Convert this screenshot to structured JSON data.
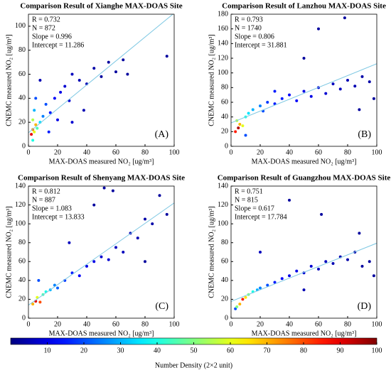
{
  "chart_data": [
    {
      "type": "scatter",
      "title": "Comparison Result of Xianghe MAX-DOAS Site",
      "x_label": "MAX-DOAS measured NO₂ [ug/m³]",
      "y_label": "CNEMC measured NO₂ [ug/m³]",
      "annotations": [
        "R = 0.732",
        "N = 872",
        "Slope = 0.996",
        "Intercept = 11.286"
      ],
      "panel_label": "(A)",
      "fit": {
        "slope": 0.996,
        "intercept": 11.286,
        "color": "#7ec8e3"
      },
      "xlim": [
        0,
        100
      ],
      "xticks": [
        0,
        20,
        40,
        60,
        80,
        100
      ],
      "ylim": [
        0,
        110
      ],
      "yticks": [
        0,
        20,
        40,
        60,
        80,
        100
      ],
      "x": [
        2,
        3,
        4,
        5,
        3,
        6,
        8,
        4,
        10,
        12,
        15,
        18,
        20,
        22,
        25,
        28,
        30,
        35,
        40,
        45,
        50,
        55,
        60,
        65,
        68,
        95,
        8,
        14,
        5,
        30,
        38,
        3
      ],
      "y": [
        10,
        14,
        12,
        18,
        22,
        15,
        20,
        30,
        25,
        35,
        28,
        40,
        22,
        45,
        50,
        38,
        60,
        55,
        52,
        65,
        58,
        70,
        62,
        72,
        60,
        75,
        55,
        12,
        40,
        20,
        30,
        5
      ],
      "density": [
        90,
        75,
        60,
        70,
        55,
        45,
        35,
        30,
        25,
        20,
        15,
        12,
        10,
        10,
        8,
        8,
        6,
        5,
        5,
        4,
        3,
        3,
        3,
        3,
        3,
        3,
        5,
        15,
        20,
        8,
        5,
        40
      ]
    },
    {
      "type": "scatter",
      "title": "Comparison Result of Lanzhou MAX-DOAS Site",
      "x_label": "MAX-DOAS measured NO₂ [ug/m³]",
      "y_label": "CNEMC measured NO₂ [ug/m³]",
      "annotations": [
        "R = 0.793",
        "N = 1740",
        "Slope = 0.806",
        "Intercept = 31.881"
      ],
      "panel_label": "(B)",
      "fit": {
        "slope": 0.806,
        "intercept": 31.881,
        "color": "#7ec8e3"
      },
      "xlim": [
        0,
        100
      ],
      "xticks": [
        0,
        20,
        40,
        60,
        80,
        100
      ],
      "ylim": [
        0,
        180
      ],
      "yticks": [
        0,
        20,
        40,
        60,
        80,
        100,
        120,
        140,
        160,
        180
      ],
      "x": [
        3,
        5,
        6,
        8,
        4,
        10,
        12,
        15,
        20,
        22,
        25,
        30,
        35,
        40,
        45,
        50,
        55,
        60,
        65,
        70,
        75,
        80,
        85,
        90,
        95,
        98,
        60,
        30,
        50,
        78,
        88,
        10
      ],
      "y": [
        20,
        25,
        30,
        28,
        35,
        40,
        45,
        50,
        55,
        48,
        60,
        58,
        65,
        70,
        62,
        75,
        68,
        80,
        72,
        85,
        78,
        90,
        82,
        95,
        88,
        65,
        160,
        75,
        120,
        175,
        50,
        15
      ],
      "density": [
        85,
        95,
        70,
        60,
        55,
        40,
        35,
        30,
        25,
        20,
        18,
        15,
        15,
        12,
        12,
        10,
        10,
        8,
        8,
        6,
        6,
        5,
        5,
        4,
        4,
        3,
        3,
        15,
        3,
        3,
        3,
        20
      ]
    },
    {
      "type": "scatter",
      "title": "Comparison Result of Shenyang MAX-DOAS Site",
      "x_label": "MAX-DOAS measured NO₂ [ug/m³]",
      "y_label": "CNEMC measured NO₂ [ug/m³]",
      "annotations": [
        "R = 0.812",
        "N = 887",
        "Slope = 1.083",
        "Intercept = 13.833"
      ],
      "panel_label": "(C)",
      "fit": {
        "slope": 1.083,
        "intercept": 13.833,
        "color": "#7ec8e3"
      },
      "xlim": [
        0,
        100
      ],
      "xticks": [
        0,
        20,
        40,
        60,
        80,
        100
      ],
      "ylim": [
        0,
        140
      ],
      "yticks": [
        0,
        20,
        40,
        60,
        80,
        100,
        120,
        140
      ],
      "x": [
        3,
        5,
        6,
        8,
        10,
        12,
        15,
        18,
        20,
        25,
        30,
        35,
        40,
        45,
        50,
        55,
        60,
        65,
        70,
        75,
        80,
        85,
        90,
        95,
        45,
        52,
        28,
        7,
        58,
        80
      ],
      "y": [
        15,
        18,
        22,
        17,
        25,
        28,
        30,
        35,
        32,
        40,
        48,
        45,
        55,
        60,
        65,
        62,
        75,
        70,
        90,
        85,
        105,
        100,
        130,
        110,
        120,
        138,
        80,
        40,
        135,
        60
      ],
      "density": [
        70,
        90,
        60,
        80,
        45,
        40,
        30,
        25,
        22,
        18,
        15,
        12,
        10,
        10,
        8,
        8,
        6,
        6,
        5,
        5,
        4,
        4,
        3,
        3,
        3,
        3,
        6,
        20,
        3,
        3
      ]
    },
    {
      "type": "scatter",
      "title": "Comparison Result of Guangzhou MAX-DOAS Site",
      "x_label": "MAX-DOAS measured NO₂ [ug/m³]",
      "y_label": "CNEMC measured NO₂ [ug/m³]",
      "annotations": [
        "R = 0.751",
        "N = 815",
        "Slope = 0.617",
        "Intercept = 17.784"
      ],
      "panel_label": "(D)",
      "fit": {
        "slope": 0.617,
        "intercept": 17.784,
        "color": "#7ec8e3"
      },
      "xlim": [
        0,
        100
      ],
      "xticks": [
        0,
        20,
        40,
        60,
        80,
        100
      ],
      "ylim": [
        0,
        140
      ],
      "yticks": [
        0,
        20,
        40,
        60,
        80,
        100,
        120,
        140
      ],
      "x": [
        4,
        6,
        8,
        10,
        12,
        15,
        18,
        20,
        25,
        30,
        35,
        40,
        45,
        50,
        55,
        60,
        65,
        70,
        75,
        80,
        85,
        90,
        95,
        98,
        40,
        62,
        88,
        20,
        3,
        50
      ],
      "y": [
        12,
        15,
        20,
        22,
        25,
        28,
        30,
        32,
        35,
        38,
        42,
        45,
        50,
        48,
        55,
        52,
        60,
        58,
        65,
        62,
        70,
        55,
        60,
        45,
        125,
        110,
        90,
        70,
        10,
        30
      ],
      "density": [
        50,
        70,
        85,
        65,
        50,
        40,
        30,
        25,
        20,
        15,
        12,
        10,
        10,
        8,
        8,
        6,
        6,
        5,
        5,
        4,
        4,
        3,
        3,
        3,
        3,
        3,
        3,
        6,
        20,
        5
      ]
    }
  ],
  "colorbar": {
    "lim": [
      0,
      100
    ],
    "ticks": [
      10,
      20,
      30,
      40,
      50,
      60,
      70,
      80,
      90,
      100
    ],
    "label": "Number Density (2×2 unit)"
  }
}
